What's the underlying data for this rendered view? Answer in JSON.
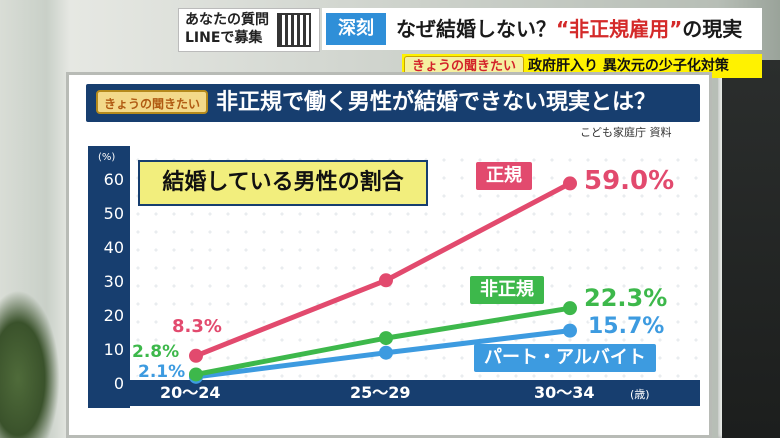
{
  "ticker": {
    "line_text_1": "あなたの質問",
    "line_text_2": "LINEで募集",
    "headline_badge": "深刻",
    "headline_plain": "なぜ結婚しない？",
    "headline_red": "“非正規雇用”",
    "headline_tail": "の現実",
    "sub_badge": "きょうの聞きたい",
    "sub_text": "政府肝入り 異次元の少子化対策"
  },
  "board": {
    "tag": "きょうの聞きたい",
    "title": "非正規で働く男性が結婚できない現実とは？",
    "source": "こども家庭庁 資料"
  },
  "colors": {
    "regular": "#e24a6e",
    "nonregular": "#3db84b",
    "parttime": "#3d9be0",
    "navy": "#173e6f"
  },
  "chart_data": {
    "type": "line",
    "title": "結婚している男性の割合",
    "y_unit": "(%)",
    "x_unit": "(歳)",
    "categories": [
      "20～24",
      "25～29",
      "30～34"
    ],
    "ylim": [
      0,
      60
    ],
    "yticks": [
      0,
      10,
      20,
      30,
      40,
      50,
      60
    ],
    "series": [
      {
        "name": "正規",
        "values": [
          8.3,
          30.5,
          59.0
        ],
        "labels": [
          "8.3%",
          "",
          "59.0%"
        ]
      },
      {
        "name": "非正規",
        "values": [
          2.8,
          13.5,
          22.3
        ],
        "labels": [
          "2.8%",
          "",
          "22.3%"
        ]
      },
      {
        "name": "パート・アルバイト",
        "values": [
          2.1,
          9.2,
          15.7
        ],
        "labels": [
          "2.1%",
          "",
          "15.7%"
        ]
      }
    ]
  }
}
